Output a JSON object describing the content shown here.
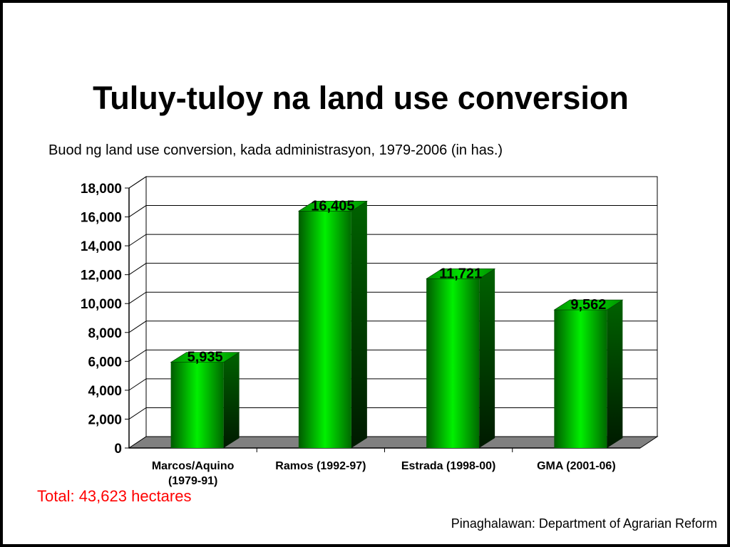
{
  "slide": {
    "title": "Tuluy-tuloy na land use conversion",
    "subtitle": "Buod ng land use conversion, kada administrasyon, 1979-2006 (in has.)",
    "total": "Total: 43,623 hectares",
    "source": "Pinaghalawan: Department of Agrarian Reform"
  },
  "chart_data": {
    "type": "bar",
    "title": "",
    "xlabel": "",
    "ylabel": "",
    "categories": [
      [
        "Marcos/Aquino",
        "(1979-91)"
      ],
      [
        "Ramos (1992-97)"
      ],
      [
        "Estrada (1998-00)"
      ],
      [
        "GMA (2001-06)"
      ]
    ],
    "values": [
      5935,
      16405,
      11721,
      9562
    ],
    "value_labels": [
      "5,935",
      "16,405",
      "11,721",
      "9,562"
    ],
    "ylim": [
      0,
      18000
    ],
    "ytick_values": [
      0,
      2000,
      4000,
      6000,
      8000,
      10000,
      12000,
      14000,
      16000,
      18000
    ],
    "ytick_labels": [
      "0",
      "2,000",
      "4,000",
      "6,000",
      "8,000",
      "10,000",
      "12,000",
      "14,000",
      "16,000",
      "18,000"
    ],
    "grid": true,
    "legend": "none",
    "bar_color": "#00cc00"
  }
}
